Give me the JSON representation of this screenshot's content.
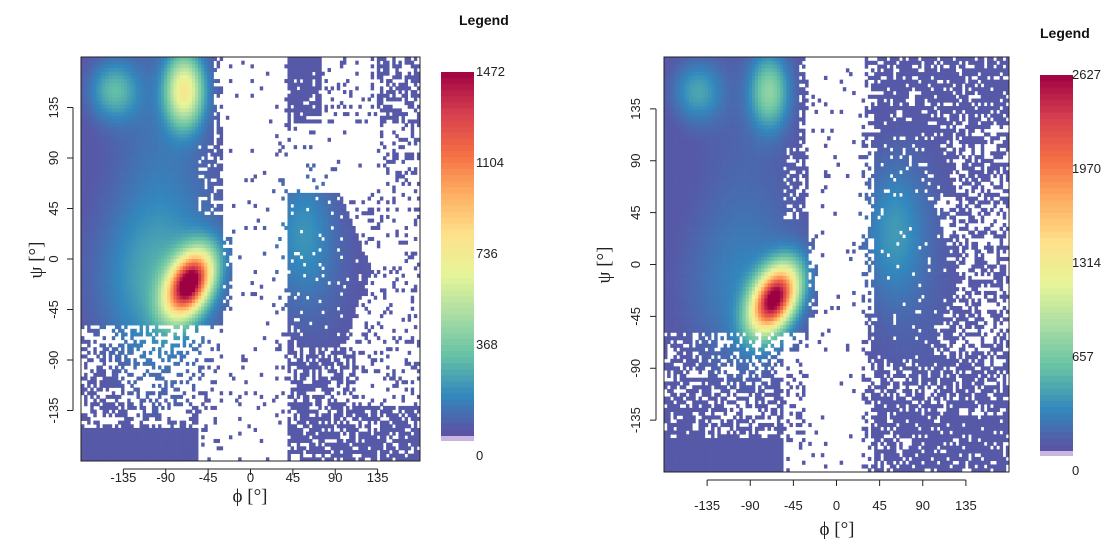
{
  "chart_data": [
    {
      "type": "heatmap",
      "legend_title": "Legend",
      "xlabel": "ϕ [°]",
      "ylabel": "ψ [°]",
      "xlim": [
        -180,
        180
      ],
      "ylim": [
        -180,
        180
      ],
      "xticks": [
        -135,
        -90,
        -45,
        0,
        45,
        90,
        135
      ],
      "yticks": [
        -135,
        -90,
        -45,
        0,
        45,
        90,
        135
      ],
      "color_scale": {
        "min": 0,
        "max": 1472,
        "ticks": [
          0,
          368,
          736,
          1104,
          1472
        ]
      },
      "density_peaks": [
        {
          "phi": -65,
          "psi": -22,
          "value": 1472
        },
        {
          "phi": -70,
          "psi": 150,
          "value": 700
        },
        {
          "phi": -145,
          "psi": 150,
          "value": 280
        },
        {
          "phi": 55,
          "psi": 25,
          "value": 150
        }
      ]
    },
    {
      "type": "heatmap",
      "legend_title": "Legend",
      "xlabel": "ϕ [°]",
      "ylabel": "ψ [°]",
      "xlim": [
        -180,
        180
      ],
      "ylim": [
        -180,
        180
      ],
      "xticks": [
        -135,
        -90,
        -45,
        0,
        45,
        90,
        135
      ],
      "yticks": [
        -135,
        -90,
        -45,
        0,
        45,
        90,
        135
      ],
      "color_scale": {
        "min": 0,
        "max": 2627,
        "ticks": [
          0,
          657,
          1314,
          1970,
          2627
        ]
      },
      "density_peaks": [
        {
          "phi": -65,
          "psi": -30,
          "value": 2627
        },
        {
          "phi": -70,
          "psi": 150,
          "value": 700
        },
        {
          "phi": -145,
          "psi": 150,
          "value": 400
        },
        {
          "phi": 60,
          "psi": 30,
          "value": 300
        }
      ]
    }
  ],
  "colors": {
    "palette": [
      "#5e4fa2",
      "#3288bd",
      "#66c2a5",
      "#abdda4",
      "#e6f598",
      "#fee08b",
      "#fdae61",
      "#f46d43",
      "#d53e4f",
      "#9e0142"
    ]
  }
}
